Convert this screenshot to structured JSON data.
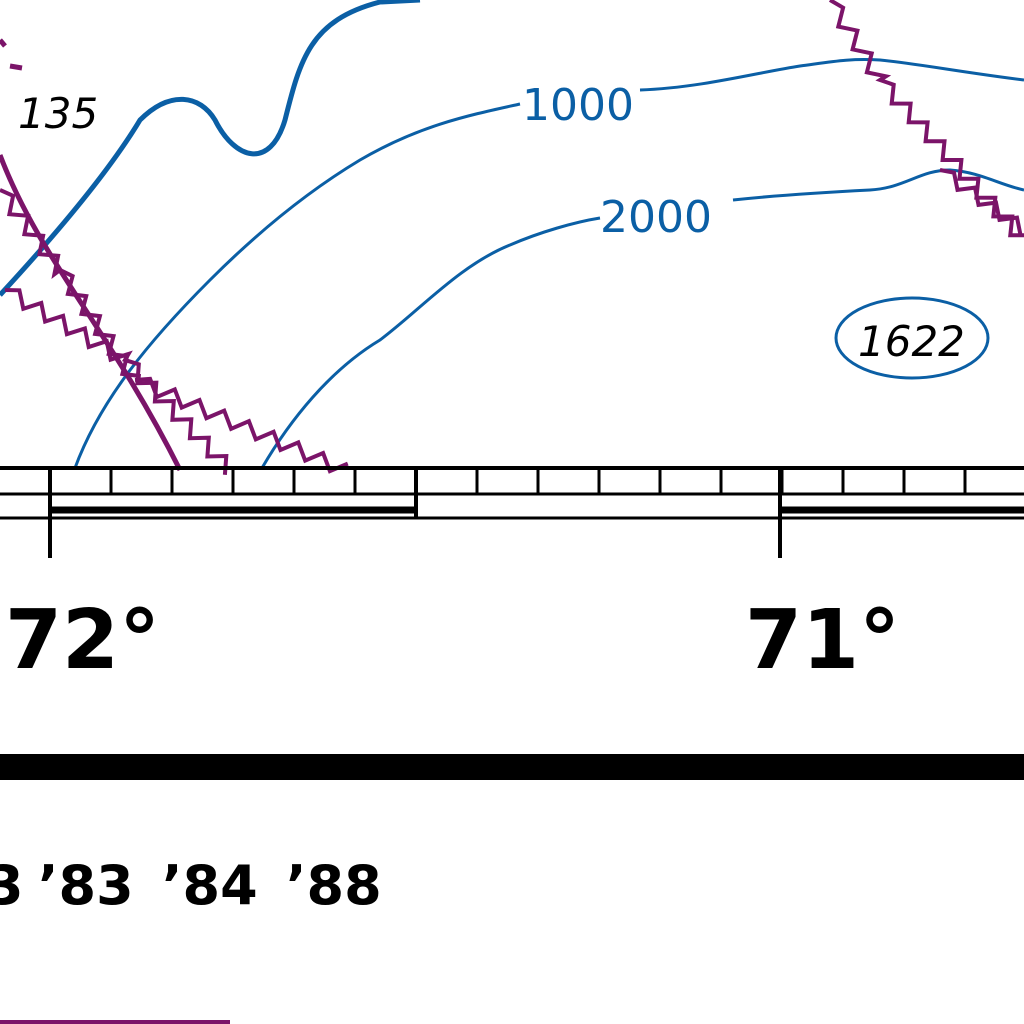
{
  "colors": {
    "depth_contour": "#0b5fa5",
    "boundary": "#7b1469",
    "neatline": "#000000",
    "background": "#ffffff"
  },
  "soundings": {
    "north_west": "135",
    "east": "1622"
  },
  "contours": {
    "c1000": "1000",
    "c2000": "2000"
  },
  "longitudes": {
    "west": "72°",
    "east": "71°"
  },
  "edition_years": {
    "partial": "3",
    "y83": "’83",
    "y84": "’84",
    "y88": "’88"
  }
}
